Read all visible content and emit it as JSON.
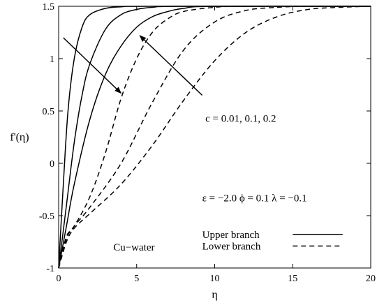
{
  "chart_data": {
    "type": "line",
    "xlabel": "η",
    "ylabel": "f'(η)",
    "xlim": [
      0,
      20
    ],
    "ylim": [
      -1,
      1.5
    ],
    "xticks": [
      0,
      5,
      10,
      15,
      20
    ],
    "yticks": [
      -1,
      -0.5,
      0,
      0.5,
      1,
      1.5
    ],
    "grid": false,
    "series": [
      {
        "branch": "upper",
        "c": 0.01,
        "points": [
          [
            0,
            -1
          ],
          [
            0.3,
            -0.2
          ],
          [
            0.6,
            0.5
          ],
          [
            1,
            1.0
          ],
          [
            1.5,
            1.3
          ],
          [
            2,
            1.42
          ],
          [
            3,
            1.48
          ],
          [
            4,
            1.495
          ],
          [
            6,
            1.5
          ],
          [
            20,
            1.5
          ]
        ]
      },
      {
        "branch": "upper",
        "c": 0.1,
        "points": [
          [
            0,
            -1
          ],
          [
            0.5,
            -0.4
          ],
          [
            1,
            0.2
          ],
          [
            1.5,
            0.65
          ],
          [
            2,
            0.95
          ],
          [
            3,
            1.28
          ],
          [
            4,
            1.42
          ],
          [
            5,
            1.47
          ],
          [
            6,
            1.49
          ],
          [
            8,
            1.5
          ],
          [
            20,
            1.5
          ]
        ]
      },
      {
        "branch": "upper",
        "c": 0.2,
        "points": [
          [
            0,
            -1
          ],
          [
            0.5,
            -0.6
          ],
          [
            1,
            -0.2
          ],
          [
            2,
            0.42
          ],
          [
            3,
            0.85
          ],
          [
            4,
            1.12
          ],
          [
            5,
            1.3
          ],
          [
            6,
            1.4
          ],
          [
            7,
            1.45
          ],
          [
            8,
            1.48
          ],
          [
            10,
            1.5
          ],
          [
            20,
            1.5
          ]
        ]
      },
      {
        "branch": "lower",
        "c": 0.01,
        "points": [
          [
            0,
            -1
          ],
          [
            0.5,
            -0.7
          ],
          [
            1,
            -0.6
          ],
          [
            2,
            -0.32
          ],
          [
            3,
            0.1
          ],
          [
            4,
            0.62
          ],
          [
            5,
            1.0
          ],
          [
            6,
            1.25
          ],
          [
            7,
            1.38
          ],
          [
            8,
            1.45
          ],
          [
            10,
            1.49
          ],
          [
            12,
            1.5
          ],
          [
            20,
            1.5
          ]
        ]
      },
      {
        "branch": "lower",
        "c": 0.1,
        "points": [
          [
            0,
            -1
          ],
          [
            0.5,
            -0.72
          ],
          [
            1,
            -0.6
          ],
          [
            2,
            -0.42
          ],
          [
            4,
            0.0
          ],
          [
            6,
            0.58
          ],
          [
            8,
            1.08
          ],
          [
            10,
            1.35
          ],
          [
            12,
            1.46
          ],
          [
            14,
            1.49
          ],
          [
            16,
            1.5
          ],
          [
            20,
            1.5
          ]
        ]
      },
      {
        "branch": "lower",
        "c": 0.2,
        "points": [
          [
            0,
            -1
          ],
          [
            0.5,
            -0.75
          ],
          [
            1,
            -0.62
          ],
          [
            2,
            -0.48
          ],
          [
            4,
            -0.2
          ],
          [
            6,
            0.17
          ],
          [
            8,
            0.6
          ],
          [
            10,
            0.98
          ],
          [
            12,
            1.25
          ],
          [
            14,
            1.4
          ],
          [
            16,
            1.47
          ],
          [
            18,
            1.49
          ],
          [
            20,
            1.5
          ]
        ]
      }
    ],
    "arrows": [
      {
        "from": [
          0.3,
          1.2
        ],
        "to": [
          4.0,
          0.67
        ]
      },
      {
        "from": [
          9.2,
          0.65
        ],
        "to": [
          5.2,
          1.22
        ]
      }
    ],
    "annotations": {
      "c_values": "c = 0.01, 0.1, 0.2",
      "params": "ε = −2.0   ϕ = 0.1   λ = −0.1",
      "fluid": "Cu−water"
    },
    "legend": {
      "placement": "lower-right",
      "entries": [
        {
          "label": "Upper branch",
          "style": "solid"
        },
        {
          "label": "Lower branch",
          "style": "dashed"
        }
      ]
    }
  }
}
